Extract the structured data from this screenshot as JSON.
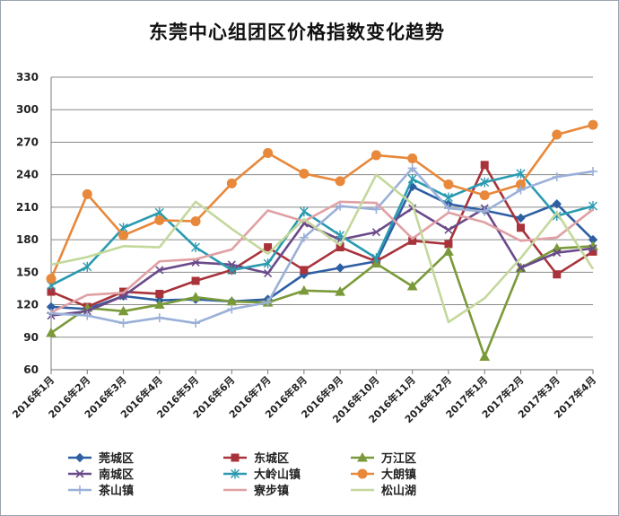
{
  "chart_data": {
    "type": "line",
    "title": "东莞中心组团区价格指数变化趋势",
    "xlabel": "",
    "ylabel": "",
    "ylim": [
      60,
      330
    ],
    "yticks": [
      60,
      90,
      120,
      150,
      180,
      210,
      240,
      270,
      300,
      330
    ],
    "grid": true,
    "legend_position": "bottom",
    "categories": [
      "2016年1月",
      "2016年2月",
      "2016年3月",
      "2016年4月",
      "2016年5月",
      "2016年6月",
      "2016年7月",
      "2016年8月",
      "2016年9月",
      "2016年10月",
      "2016年11月",
      "2016年12月",
      "2017年1月",
      "2017年2月",
      "2017年3月",
      "2017年4月"
    ],
    "series": [
      {
        "name": "莞城区",
        "color": "#2e5fa3",
        "marker": "diamond",
        "values": [
          118,
          116,
          128,
          124,
          125,
          123,
          125,
          148,
          154,
          160,
          229,
          213,
          207,
          200,
          213,
          180
        ]
      },
      {
        "name": "东城区",
        "color": "#a8333a",
        "marker": "square",
        "values": [
          132,
          118,
          132,
          130,
          142,
          152,
          173,
          152,
          173,
          160,
          179,
          176,
          249,
          191,
          148,
          169
        ]
      },
      {
        "name": "万江区",
        "color": "#7a9a3a",
        "marker": "triangle",
        "values": [
          94,
          117,
          114,
          120,
          127,
          123,
          122,
          133,
          132,
          158,
          137,
          169,
          72,
          154,
          172,
          174
        ]
      },
      {
        "name": "南城区",
        "color": "#6a4a8a",
        "marker": "x",
        "values": [
          110,
          114,
          128,
          152,
          159,
          157,
          149,
          195,
          180,
          187,
          209,
          189,
          209,
          154,
          168,
          172
        ]
      },
      {
        "name": "大岭山镇",
        "color": "#2a9ab0",
        "marker": "star",
        "values": [
          138,
          155,
          191,
          205,
          173,
          152,
          158,
          206,
          184,
          163,
          236,
          219,
          233,
          241,
          202,
          211
        ]
      },
      {
        "name": "大朗镇",
        "color": "#e8883a",
        "marker": "circle",
        "values": [
          144,
          222,
          184,
          198,
          197,
          232,
          260,
          241,
          234,
          258,
          255,
          231,
          221,
          231,
          277,
          286
        ]
      },
      {
        "name": "茶山镇",
        "color": "#9ab0d8",
        "marker": "plus",
        "values": [
          112,
          110,
          103,
          108,
          103,
          116,
          122,
          182,
          211,
          208,
          246,
          209,
          206,
          226,
          238,
          243
        ]
      },
      {
        "name": "寮步镇",
        "color": "#e0a0a4",
        "marker": "none",
        "values": [
          113,
          129,
          131,
          160,
          162,
          171,
          207,
          197,
          215,
          214,
          181,
          205,
          196,
          179,
          182,
          208
        ]
      },
      {
        "name": "松山湖",
        "color": "#c4d89c",
        "marker": "none",
        "values": [
          157,
          164,
          174,
          173,
          215,
          190,
          167,
          199,
          175,
          240,
          213,
          104,
          126,
          163,
          205,
          153
        ]
      }
    ]
  }
}
